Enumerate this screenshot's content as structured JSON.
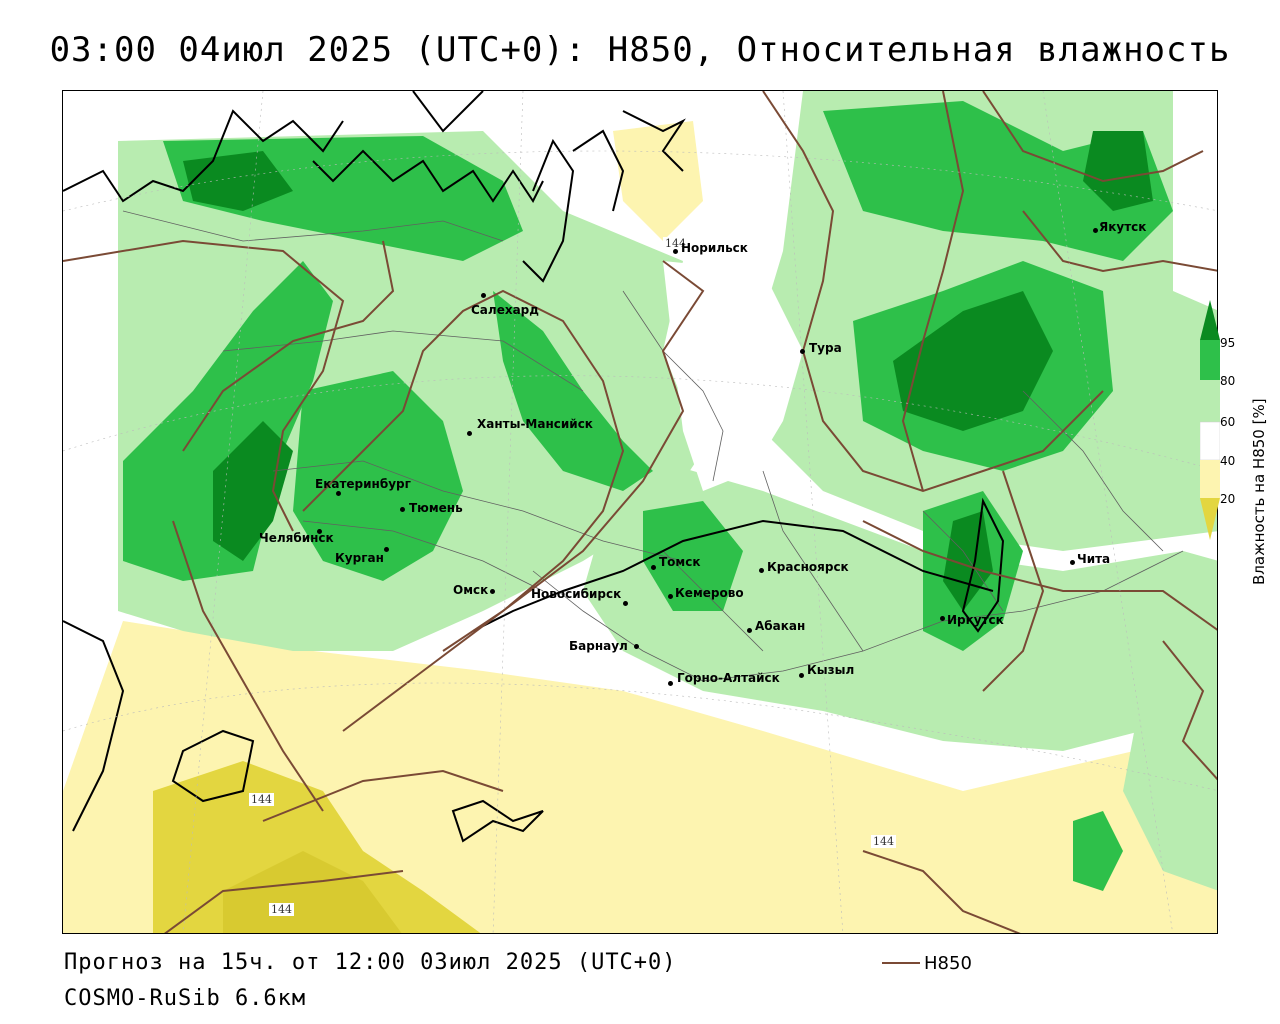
{
  "title": "03:00 04июл 2025 (UTC+0): H850, Относительная влажность",
  "footer": {
    "forecast": "Прогноз на 15ч. от 12:00 03июл 2025 (UTC+0)",
    "model": "COSMO-RuSib 6.6км"
  },
  "legend": {
    "line_label": "H850",
    "line_color": "#7a4a35"
  },
  "colorbar": {
    "title": "Влажность на H850 [%]",
    "ticks": [
      "95",
      "80",
      "60",
      "40",
      "20"
    ],
    "colors": {
      "gt95": "#0a8a20",
      "80_95": "#2ec04a",
      "60_80": "#b8ecb0",
      "40_60": "#ffffff",
      "20_40": "#fdf4b0",
      "lt20": "#e3d640"
    }
  },
  "contour_labels": [
    "144",
    "144",
    "144",
    "144"
  ],
  "cities": [
    {
      "name": "Якутск"
    },
    {
      "name": "Норильск"
    },
    {
      "name": "Салехард"
    },
    {
      "name": "Тура"
    },
    {
      "name": "Ханты-Мансийск"
    },
    {
      "name": "Екатеринбург"
    },
    {
      "name": "Тюмень"
    },
    {
      "name": "Челябинск"
    },
    {
      "name": "Курган"
    },
    {
      "name": "Омск"
    },
    {
      "name": "Томск"
    },
    {
      "name": "Красноярск"
    },
    {
      "name": "Новосибирск"
    },
    {
      "name": "Кемерово"
    },
    {
      "name": "Абакан"
    },
    {
      "name": "Барнаул"
    },
    {
      "name": "Горно-Алтайск"
    },
    {
      "name": "Кызыл"
    },
    {
      "name": "Иркутск"
    },
    {
      "name": "Чита"
    }
  ]
}
